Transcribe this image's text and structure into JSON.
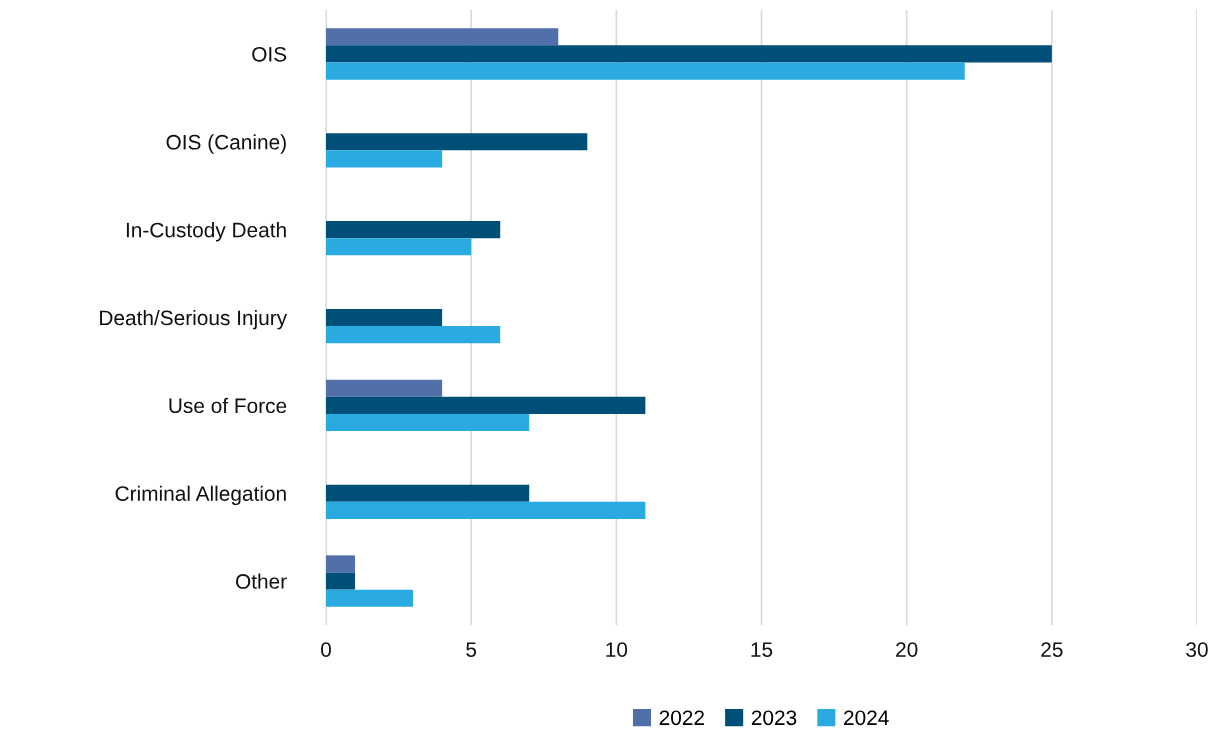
{
  "chart_data": {
    "type": "bar",
    "orientation": "horizontal",
    "categories": [
      "OIS",
      "OIS (Canine)",
      "In-Custody Death",
      "Death/Serious Injury",
      "Use of Force",
      "Criminal Allegation",
      "Other"
    ],
    "series": [
      {
        "name": "2022",
        "color": "#5170aa",
        "values": [
          8,
          0,
          0,
          0,
          4,
          0,
          1
        ]
      },
      {
        "name": "2023",
        "color": "#004f79",
        "values": [
          25,
          9,
          6,
          4,
          11,
          7,
          1
        ]
      },
      {
        "name": "2024",
        "color": "#29abe2",
        "values": [
          22,
          4,
          5,
          6,
          7,
          11,
          3
        ]
      }
    ],
    "xlim": [
      0,
      30
    ],
    "xticks": [
      0,
      5,
      10,
      15,
      20,
      25,
      30
    ],
    "grid": "x",
    "legend": "bottom"
  }
}
